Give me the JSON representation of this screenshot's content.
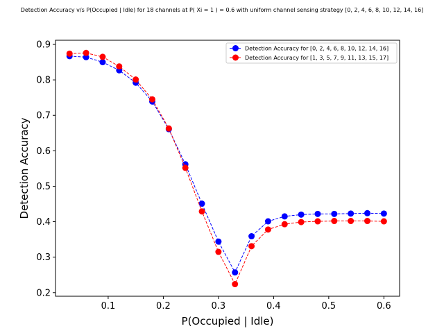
{
  "chart_data": {
    "type": "line",
    "title": "Detection Accuracy v/s P(Occupied | Idle) for 18 channels at P( Xi = 1 ) = 0.6 with uniform channel sensing strategy [0, 2, 4, 6, 8, 10, 12, 14, 16]",
    "xlabel": "P(Occupied | Idle)",
    "ylabel": "Detection Accuracy",
    "xlim": [
      0.0045,
      0.6285
    ],
    "ylim": [
      0.1898,
      0.9118
    ],
    "xticks": [
      0.1,
      0.2,
      0.3,
      0.4,
      0.5,
      0.6
    ],
    "xtick_labels": [
      "0.1",
      "0.2",
      "0.3",
      "0.4",
      "0.5",
      "0.6"
    ],
    "yticks": [
      0.2,
      0.3,
      0.4,
      0.5,
      0.6,
      0.7,
      0.8,
      0.9
    ],
    "ytick_labels": [
      "0.2",
      "0.3",
      "0.4",
      "0.5",
      "0.6",
      "0.7",
      "0.8",
      "0.9"
    ],
    "grid": false,
    "legend_position": "top-right",
    "x": [
      0.03,
      0.06,
      0.09,
      0.12,
      0.15,
      0.18,
      0.21,
      0.24,
      0.27,
      0.3,
      0.33,
      0.36,
      0.39,
      0.42,
      0.45,
      0.48,
      0.51,
      0.54,
      0.57,
      0.6
    ],
    "series": [
      {
        "name": "Detection Accuracy for [0, 2, 4, 6, 8, 10, 12, 14, 16]",
        "color": "#0000ff",
        "style": "dashed-marker",
        "values": [
          0.867,
          0.864,
          0.85,
          0.827,
          0.792,
          0.739,
          0.661,
          0.562,
          0.451,
          0.344,
          0.257,
          0.359,
          0.401,
          0.415,
          0.42,
          0.422,
          0.422,
          0.423,
          0.424,
          0.423
        ]
      },
      {
        "name": "Detection Accuracy for [1, 3, 5, 7, 9, 11, 13, 15, 17]",
        "color": "#ff0000",
        "style": "dashed-marker",
        "values": [
          0.874,
          0.876,
          0.865,
          0.838,
          0.801,
          0.745,
          0.663,
          0.552,
          0.429,
          0.315,
          0.224,
          0.331,
          0.378,
          0.393,
          0.399,
          0.401,
          0.402,
          0.402,
          0.402,
          0.401
        ]
      }
    ]
  }
}
